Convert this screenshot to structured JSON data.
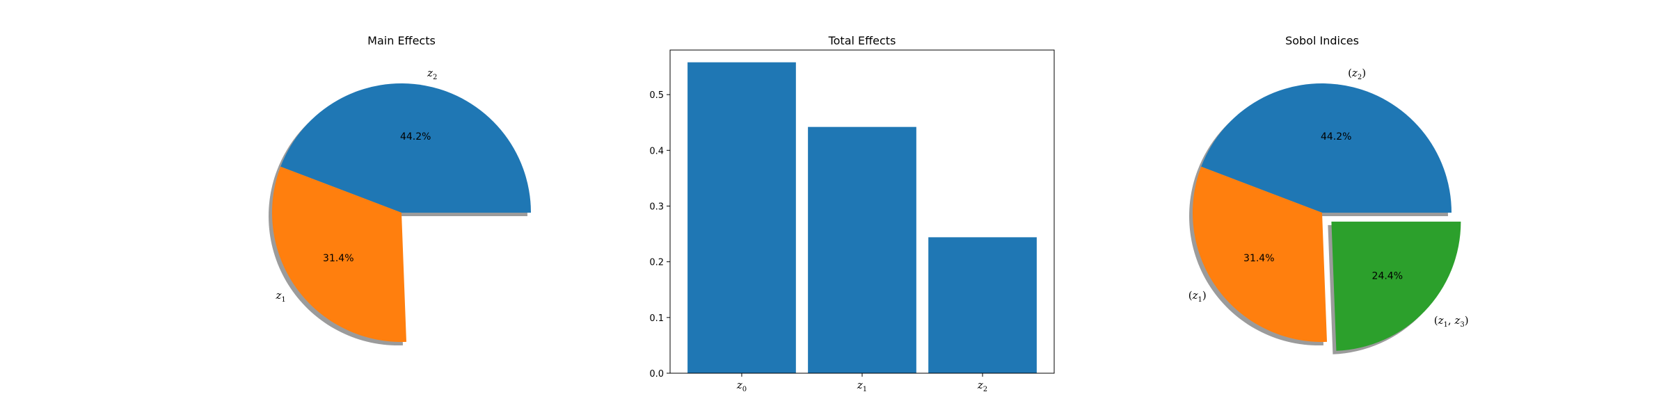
{
  "chart_data": [
    {
      "type": "pie",
      "title": "Main Effects",
      "shadow": true,
      "slices": [
        {
          "label": "z_2",
          "value": 44.2,
          "pct_label": "44.2%",
          "color": "#1f77b4",
          "explode": false
        },
        {
          "label": "z_1",
          "value": 31.4,
          "pct_label": "31.4%",
          "color": "#ff7f0e",
          "explode": false
        }
      ]
    },
    {
      "type": "bar",
      "title": "Total Effects",
      "categories": [
        "z_0",
        "z_1",
        "z_2"
      ],
      "values": [
        0.558,
        0.442,
        0.244
      ],
      "color": "#1f77b4",
      "ylim": [
        0,
        0.58
      ],
      "yticks": [
        "0.0",
        "0.1",
        "0.2",
        "0.3",
        "0.4",
        "0.5"
      ],
      "xlabel": "",
      "ylabel": ""
    },
    {
      "type": "pie",
      "title": "Sobol Indices",
      "shadow": true,
      "slices": [
        {
          "label": "(z_2)",
          "value": 44.2,
          "pct_label": "44.2%",
          "color": "#1f77b4",
          "explode": false
        },
        {
          "label": "(z_1)",
          "value": 31.4,
          "pct_label": "31.4%",
          "color": "#ff7f0e",
          "explode": false
        },
        {
          "label": "(z_1, z_3)",
          "value": 24.4,
          "pct_label": "24.4%",
          "color": "#2ca02c",
          "explode": true
        }
      ]
    }
  ]
}
